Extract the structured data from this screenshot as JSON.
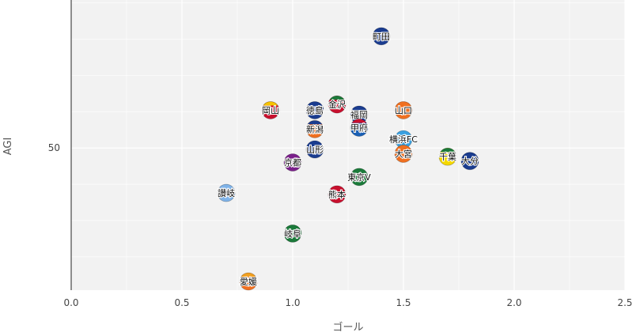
{
  "chart_data": {
    "type": "scatter",
    "xlabel": "ゴール",
    "ylabel": "AGI",
    "xlim": [
      0.0,
      2.5
    ],
    "x_ticks": [
      "0.0",
      "0.5",
      "1.0",
      "1.5",
      "2.0",
      "2.5"
    ],
    "x_tick_values": [
      0.0,
      0.5,
      1.0,
      1.5,
      2.0,
      2.5
    ],
    "y_ticks": [
      "50"
    ],
    "y_tick_values": [
      50
    ],
    "ylim": [
      40.2,
      60.2
    ],
    "grid": true,
    "points": [
      {
        "label": "町田",
        "x": 1.4,
        "y": 57.7,
        "color": "#1a3c8f",
        "stripe": "#1a3c8f"
      },
      {
        "label": "金沢",
        "x": 1.2,
        "y": 53.0,
        "color": "#c8102e",
        "stripe": "#1b7a3a"
      },
      {
        "label": "岡山",
        "x": 0.9,
        "y": 52.6,
        "color": "#c8102e",
        "stripe": "#f5c400"
      },
      {
        "label": "徳島",
        "x": 1.1,
        "y": 52.6,
        "color": "#1a3c8f",
        "stripe": "#1a3c8f"
      },
      {
        "label": "山口",
        "x": 1.5,
        "y": 52.6,
        "color": "#f07020",
        "stripe": "#f07020"
      },
      {
        "label": "福岡",
        "x": 1.3,
        "y": 52.3,
        "color": "#1a3c8f",
        "stripe": "#1a3c8f"
      },
      {
        "label": "新潟",
        "x": 1.1,
        "y": 51.3,
        "color": "#f07020",
        "stripe": "#1a3c8f"
      },
      {
        "label": "甲府",
        "x": 1.3,
        "y": 51.4,
        "color": "#1a5fb4",
        "stripe": "#c8102e"
      },
      {
        "label": "横浜FC",
        "x": 1.5,
        "y": 50.6,
        "color": "#3aa0e0",
        "stripe": "#3aa0e0"
      },
      {
        "label": "山形",
        "x": 1.1,
        "y": 49.9,
        "color": "#1a3c8f",
        "stripe": "#1a3c8f"
      },
      {
        "label": "大宮",
        "x": 1.5,
        "y": 49.6,
        "color": "#f07020",
        "stripe": "#f07020"
      },
      {
        "label": "千葉",
        "x": 1.7,
        "y": 49.4,
        "color": "#f5d800",
        "stripe": "#1a7a3a"
      },
      {
        "label": "大分",
        "x": 1.8,
        "y": 49.1,
        "color": "#1a3c8f",
        "stripe": "#1a3c8f"
      },
      {
        "label": "京都",
        "x": 1.0,
        "y": 49.0,
        "color": "#7a1f8a",
        "stripe": "#7a1f8a"
      },
      {
        "label": "東京V",
        "x": 1.3,
        "y": 48.0,
        "color": "#1b7a3a",
        "stripe": "#1b7a3a"
      },
      {
        "label": "讃岐",
        "x": 0.7,
        "y": 46.9,
        "color": "#7fb3e8",
        "stripe": "#7fb3e8"
      },
      {
        "label": "熊本",
        "x": 1.2,
        "y": 46.8,
        "color": "#c8102e",
        "stripe": "#c8102e"
      },
      {
        "label": "岐阜",
        "x": 1.0,
        "y": 44.1,
        "color": "#1b7a3a",
        "stripe": "#1b7a3a"
      },
      {
        "label": "愛媛",
        "x": 0.8,
        "y": 40.8,
        "color": "#f07020",
        "stripe": "#f0a020"
      }
    ]
  }
}
